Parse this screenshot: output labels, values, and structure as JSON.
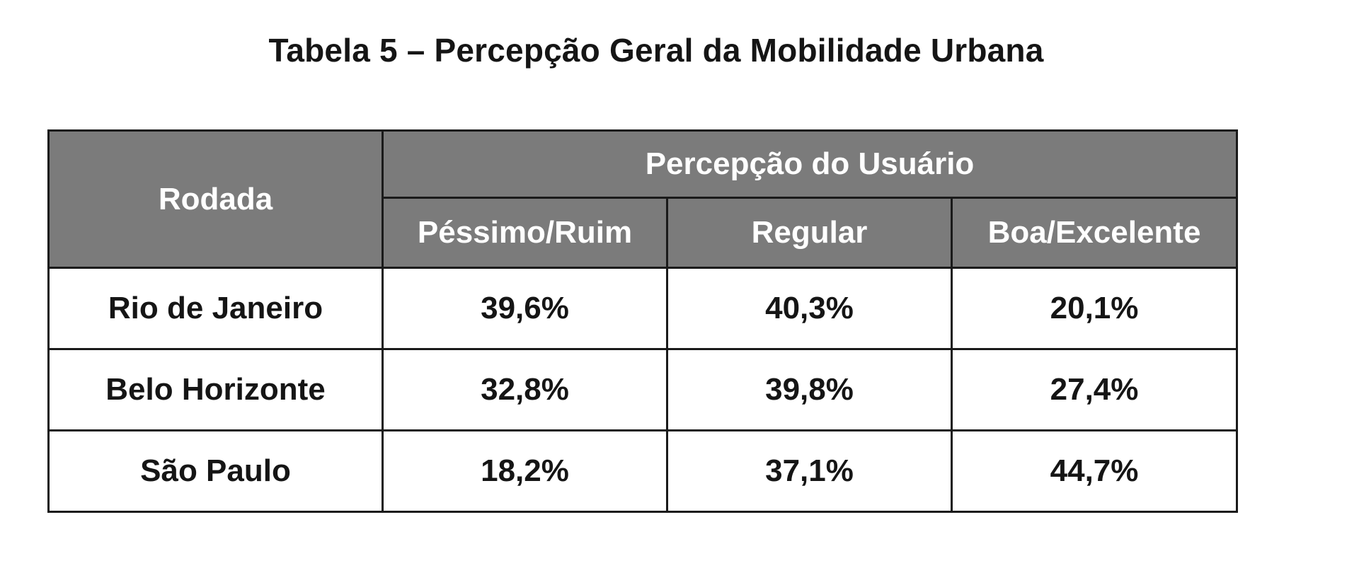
{
  "document": {
    "title": "Tabela 5 – Percepção Geral da Mobilidade Urbana"
  },
  "table": {
    "row_header": "Rodada",
    "group_header": "Percepção do Usuário",
    "columns": [
      "Péssimo/Ruim",
      "Regular",
      "Boa/Excelente"
    ],
    "rows": [
      {
        "label": "Rio de Janeiro",
        "values": [
          "39,6%",
          "40,3%",
          "20,1%"
        ]
      },
      {
        "label": "Belo Horizonte",
        "values": [
          "32,8%",
          "39,8%",
          "27,4%"
        ]
      },
      {
        "label": "São Paulo",
        "values": [
          "18,2%",
          "37,1%",
          "44,7%"
        ]
      }
    ]
  },
  "colors": {
    "header_background": "#7b7b7b",
    "header_text": "#ffffff",
    "border": "#1a1a1a",
    "body_text": "#151515"
  }
}
